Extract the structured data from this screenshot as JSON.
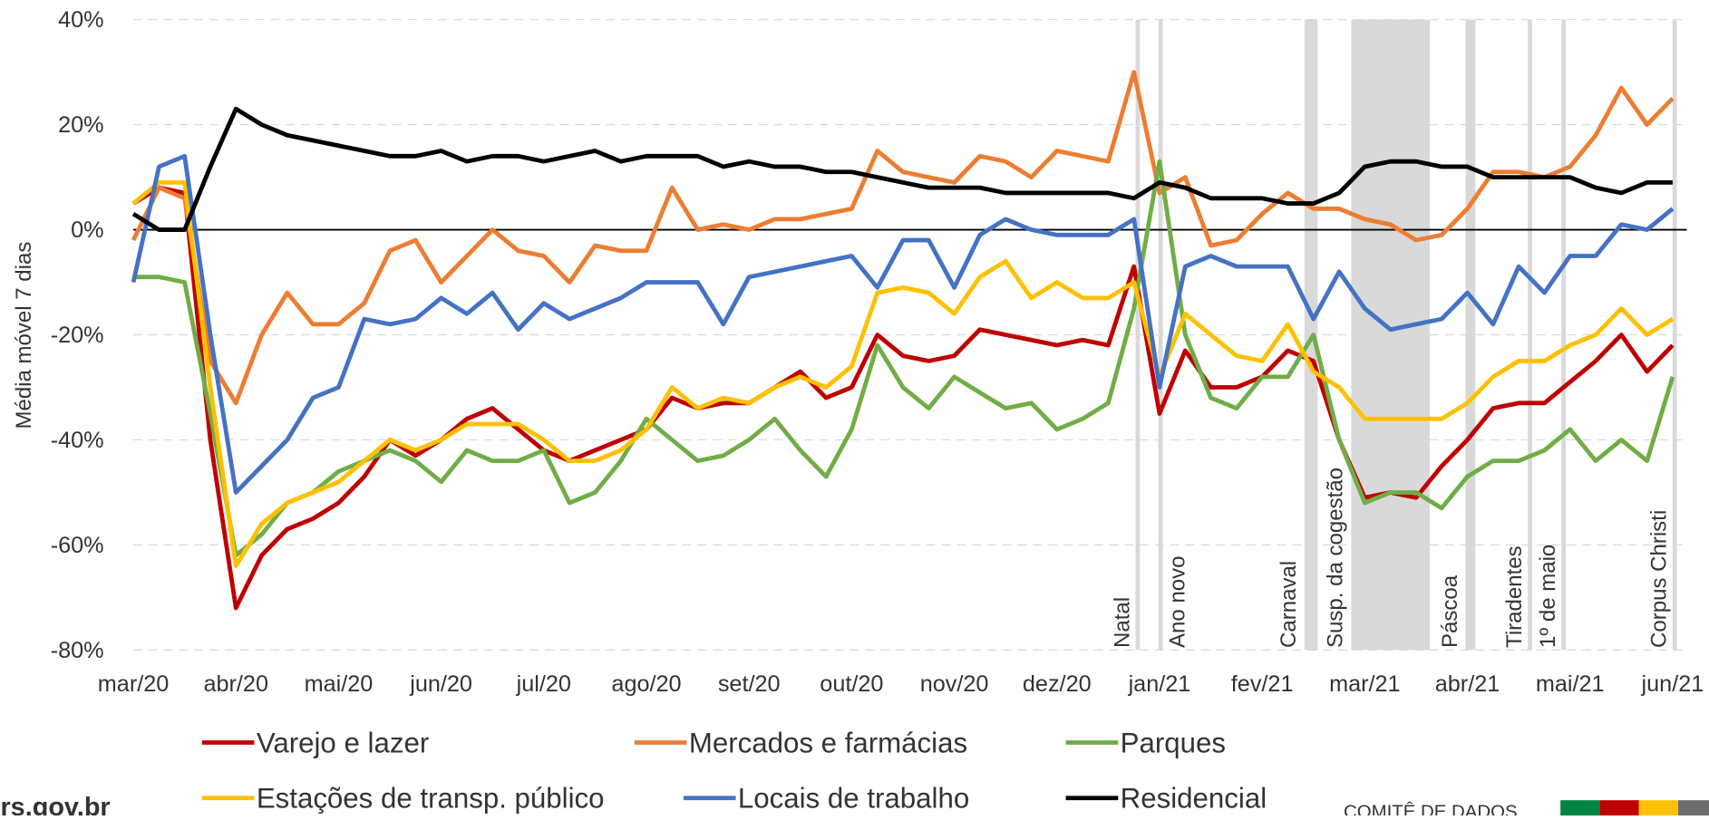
{
  "chart_data": {
    "type": "line",
    "ylabel": "Média móvel 7 dias",
    "categories": [
      "mar/20",
      null,
      null,
      null,
      "abr/20",
      null,
      null,
      null,
      "mai/20",
      null,
      null,
      null,
      "jun/20",
      null,
      null,
      null,
      "jul/20",
      null,
      null,
      null,
      "ago/20",
      null,
      null,
      null,
      "set/20",
      null,
      null,
      null,
      "out/20",
      null,
      null,
      null,
      "nov/20",
      null,
      null,
      null,
      "dez/20",
      null,
      null,
      null,
      "jan/21",
      null,
      null,
      null,
      "fev/21",
      null,
      null,
      null,
      "mar/21",
      null,
      null,
      null,
      "abr/21",
      null,
      null,
      null,
      "mai/21",
      null,
      null,
      null,
      "jun/21"
    ],
    "series": [
      {
        "name": "Varejo e lazer",
        "color": "#c00000",
        "values": [
          5,
          8,
          7,
          -40,
          -72,
          -62,
          -57,
          -55,
          -52,
          -47,
          -40,
          -43,
          -40,
          -36,
          -34,
          -38,
          -42,
          -44,
          -42,
          -40,
          -38,
          -32,
          -34,
          -33,
          -33,
          -30,
          -27,
          -32,
          -30,
          -20,
          -24,
          -25,
          -24,
          -19,
          -20,
          -21,
          -22,
          -21,
          -22,
          -7,
          -35,
          -23,
          -30,
          -30,
          -28,
          -23,
          -25,
          -40,
          -51,
          -50,
          -51,
          -45,
          -40,
          -34,
          -33,
          -33,
          -29,
          -25,
          -20,
          -27,
          -22
        ]
      },
      {
        "name": "Mercados e farmácias",
        "color": "#ed7d31",
        "values": [
          -2,
          8,
          6,
          -25,
          -33,
          -20,
          -12,
          -18,
          -18,
          -14,
          -4,
          -2,
          -10,
          -5,
          0,
          -4,
          -5,
          -10,
          -3,
          -4,
          -4,
          8,
          0,
          1,
          0,
          2,
          2,
          3,
          4,
          15,
          11,
          10,
          9,
          14,
          13,
          10,
          15,
          14,
          13,
          30,
          7,
          10,
          -3,
          -2,
          3,
          7,
          4,
          4,
          2,
          1,
          -2,
          -1,
          4,
          11,
          11,
          10,
          12,
          18,
          27,
          20,
          25
        ]
      },
      {
        "name": "Parques",
        "color": "#70ad47",
        "values": [
          -9,
          -9,
          -10,
          -35,
          -62,
          -58,
          -52,
          -50,
          -46,
          -44,
          -42,
          -44,
          -48,
          -42,
          -44,
          -44,
          -42,
          -52,
          -50,
          -44,
          -36,
          -40,
          -44,
          -43,
          -40,
          -36,
          -42,
          -47,
          -38,
          -22,
          -30,
          -34,
          -28,
          -31,
          -34,
          -33,
          -38,
          -36,
          -33,
          -15,
          13,
          -20,
          -32,
          -34,
          -28,
          -28,
          -20,
          -40,
          -52,
          -50,
          -50,
          -53,
          -47,
          -44,
          -44,
          -42,
          -38,
          -44,
          -40,
          -44,
          -28
        ]
      },
      {
        "name": "Estações de transp. público",
        "color": "#ffc000",
        "values": [
          5,
          9,
          9,
          -30,
          -64,
          -56,
          -52,
          -50,
          -48,
          -44,
          -40,
          -42,
          -40,
          -37,
          -37,
          -37,
          -40,
          -44,
          -44,
          -42,
          -38,
          -30,
          -34,
          -32,
          -33,
          -30,
          -28,
          -30,
          -26,
          -12,
          -11,
          -12,
          -16,
          -9,
          -6,
          -13,
          -10,
          -13,
          -13,
          -10,
          -28,
          -16,
          -20,
          -24,
          -25,
          -18,
          -27,
          -30,
          -36,
          -36,
          -36,
          -36,
          -33,
          -28,
          -25,
          -25,
          -22,
          -20,
          -15,
          -20,
          -17
        ]
      },
      {
        "name": "Locais de trabalho",
        "color": "#4472c4",
        "values": [
          -10,
          12,
          14,
          -20,
          -50,
          -45,
          -40,
          -32,
          -30,
          -17,
          -18,
          -17,
          -13,
          -16,
          -12,
          -19,
          -14,
          -17,
          -15,
          -13,
          -10,
          -10,
          -10,
          -18,
          -9,
          -8,
          -7,
          -6,
          -5,
          -11,
          -2,
          -2,
          -11,
          -1,
          2,
          0,
          -1,
          -1,
          -1,
          2,
          -30,
          -7,
          -5,
          -7,
          -7,
          -7,
          -17,
          -8,
          -15,
          -19,
          -18,
          -17,
          -12,
          -18,
          -7,
          -12,
          -5,
          -5,
          1,
          0,
          4
        ]
      },
      {
        "name": "Residencial",
        "color": "#000000",
        "values": [
          3,
          0,
          0,
          12,
          23,
          20,
          18,
          17,
          16,
          15,
          14,
          14,
          15,
          13,
          14,
          14,
          13,
          14,
          15,
          13,
          14,
          14,
          14,
          12,
          13,
          12,
          12,
          11,
          11,
          10,
          9,
          8,
          8,
          8,
          7,
          7,
          7,
          7,
          7,
          6,
          9,
          8,
          6,
          6,
          6,
          5,
          5,
          7,
          12,
          13,
          13,
          12,
          12,
          10,
          10,
          10,
          10,
          8,
          7,
          9,
          9
        ]
      }
    ],
    "events": [
      {
        "label": "Natal",
        "start": 39.15,
        "end": 39.15
      },
      {
        "label": "Ano novo",
        "start": 40.04,
        "end": 40.04
      },
      {
        "label": "Carnaval",
        "start": 45.65,
        "end": 46.16
      },
      {
        "label": "Susp. da cogestão",
        "start": 47.47,
        "end": 50.53
      },
      {
        "label": "Páscoa",
        "start": 51.93,
        "end": 52.31
      },
      {
        "label": "Tiradentes",
        "start": 54.44,
        "end": 54.44
      },
      {
        "label": "1º de maio",
        "start": 55.75,
        "end": 55.75
      },
      {
        "label": "Corpus Christi",
        "start": 60.08,
        "end": 60.08
      }
    ],
    "ylim": [
      -80,
      40
    ],
    "yticks": [
      {
        "value": -80,
        "label": "-80%"
      },
      {
        "value": -60,
        "label": "-60%"
      },
      {
        "value": -40,
        "label": "-40%"
      },
      {
        "value": -20,
        "label": "-20%"
      },
      {
        "value": 0,
        "label": "0%"
      },
      {
        "value": 20,
        "label": "20%"
      },
      {
        "value": 40,
        "label": "40%"
      }
    ],
    "grid": true,
    "zero_line": true,
    "legend": "bottom"
  },
  "footer": {
    "site": "rs.gov.br",
    "org": "COMITÊ DE DADOS",
    "colors": [
      "#008542",
      "#c00000",
      "#ffc000",
      "#6d6e71"
    ]
  }
}
